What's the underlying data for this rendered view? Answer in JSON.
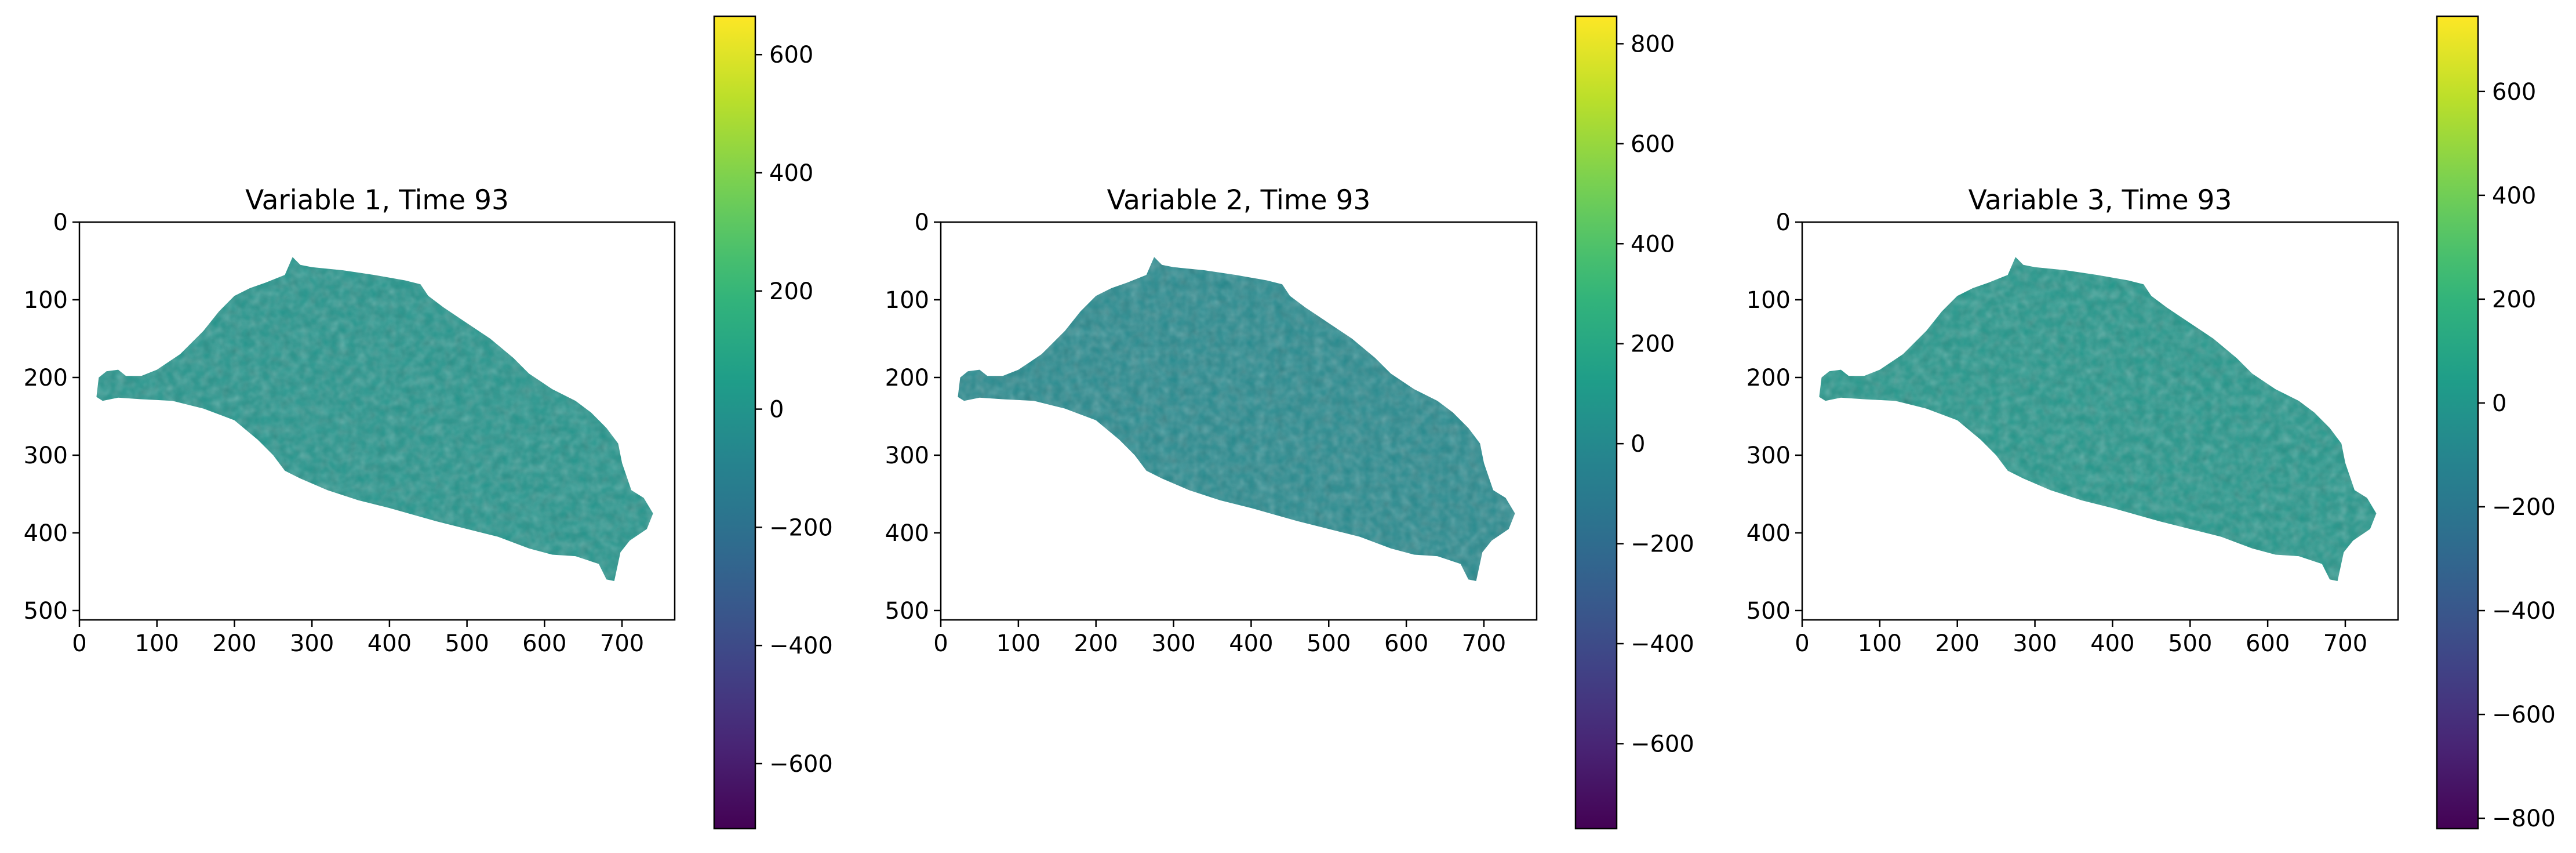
{
  "chart_data": [
    {
      "type": "heatmap",
      "title": "Variable 1, Time 93",
      "xticks": [
        0,
        100,
        200,
        300,
        400,
        500,
        600,
        700
      ],
      "yticks": [
        0,
        100,
        200,
        300,
        400,
        500
      ],
      "xlim": [
        0,
        768
      ],
      "ylim": [
        512,
        0
      ],
      "colorbar": {
        "min": -710,
        "max": 665,
        "ticks": [
          -600,
          -400,
          -200,
          0,
          200,
          400,
          600
        ]
      },
      "texture_seed": 11,
      "mean_value": 0
    },
    {
      "type": "heatmap",
      "title": "Variable 2, Time 93",
      "xticks": [
        0,
        100,
        200,
        300,
        400,
        500,
        600,
        700
      ],
      "yticks": [
        0,
        100,
        200,
        300,
        400,
        500
      ],
      "xlim": [
        0,
        768
      ],
      "ylim": [
        512,
        0
      ],
      "colorbar": {
        "min": -770,
        "max": 855,
        "ticks": [
          -600,
          -400,
          -200,
          0,
          200,
          400,
          600,
          800
        ]
      },
      "texture_seed": 23,
      "mean_value": 0
    },
    {
      "type": "heatmap",
      "title": "Variable 3, Time 93",
      "xticks": [
        0,
        100,
        200,
        300,
        400,
        500,
        600,
        700
      ],
      "yticks": [
        0,
        100,
        200,
        300,
        400,
        500
      ],
      "xlim": [
        0,
        768
      ],
      "ylim": [
        512,
        0
      ],
      "colorbar": {
        "min": -820,
        "max": 745,
        "ticks": [
          -800,
          -600,
          -400,
          -200,
          0,
          200,
          400,
          600
        ]
      },
      "texture_seed": 37,
      "mean_value": 0
    }
  ],
  "colormap": "viridis",
  "region_outline": [
    [
      22,
      225
    ],
    [
      25,
      200
    ],
    [
      35,
      192
    ],
    [
      50,
      190
    ],
    [
      60,
      198
    ],
    [
      80,
      198
    ],
    [
      100,
      190
    ],
    [
      130,
      170
    ],
    [
      160,
      140
    ],
    [
      180,
      115
    ],
    [
      200,
      95
    ],
    [
      220,
      85
    ],
    [
      240,
      78
    ],
    [
      265,
      68
    ],
    [
      275,
      45
    ],
    [
      285,
      55
    ],
    [
      300,
      58
    ],
    [
      340,
      62
    ],
    [
      380,
      68
    ],
    [
      420,
      75
    ],
    [
      440,
      80
    ],
    [
      450,
      95
    ],
    [
      470,
      110
    ],
    [
      500,
      130
    ],
    [
      530,
      150
    ],
    [
      560,
      175
    ],
    [
      580,
      195
    ],
    [
      610,
      215
    ],
    [
      640,
      230
    ],
    [
      660,
      245
    ],
    [
      680,
      265
    ],
    [
      695,
      285
    ],
    [
      700,
      310
    ],
    [
      712,
      345
    ],
    [
      728,
      355
    ],
    [
      740,
      375
    ],
    [
      732,
      395
    ],
    [
      710,
      410
    ],
    [
      698,
      425
    ],
    [
      690,
      462
    ],
    [
      680,
      460
    ],
    [
      670,
      440
    ],
    [
      640,
      430
    ],
    [
      610,
      428
    ],
    [
      580,
      420
    ],
    [
      540,
      405
    ],
    [
      500,
      395
    ],
    [
      460,
      385
    ],
    [
      400,
      368
    ],
    [
      360,
      358
    ],
    [
      320,
      345
    ],
    [
      285,
      330
    ],
    [
      265,
      320
    ],
    [
      250,
      300
    ],
    [
      230,
      280
    ],
    [
      200,
      255
    ],
    [
      160,
      240
    ],
    [
      120,
      230
    ],
    [
      80,
      228
    ],
    [
      50,
      226
    ],
    [
      30,
      230
    ]
  ]
}
